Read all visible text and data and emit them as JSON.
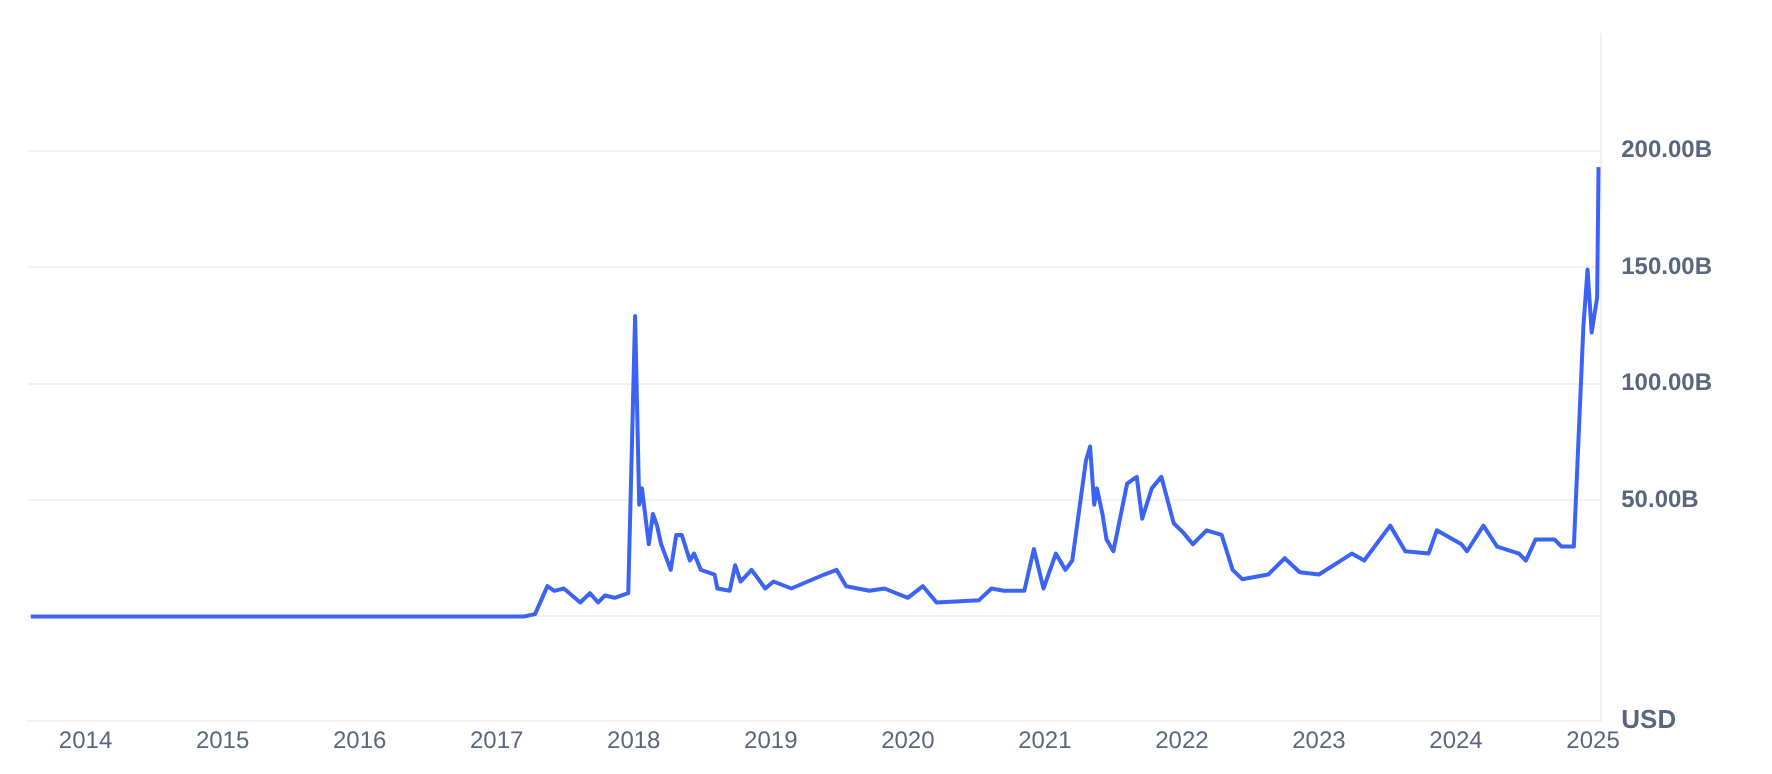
{
  "chart_data": {
    "type": "line",
    "ylabel": "USD",
    "xlim": [
      2013.58,
      2025.06
    ],
    "xticks": [
      2014,
      2015,
      2016,
      2017,
      2018,
      2019,
      2020,
      2021,
      2022,
      2023,
      2024,
      2025
    ],
    "ylim": [
      -45,
      250
    ],
    "yticks": [
      {
        "value": 0,
        "label": null
      },
      {
        "value": 50,
        "label": "50.00B"
      },
      {
        "value": 100,
        "label": "100.00B"
      },
      {
        "value": 150,
        "label": "150.00B"
      },
      {
        "value": 200,
        "label": "200.00B"
      }
    ],
    "grid": "y",
    "legend": false,
    "marker": "none",
    "line_style": "solid",
    "series": [
      {
        "color": "#3b63f5",
        "x": [
          2013.6,
          2015.0,
          2017.2,
          2017.28,
          2017.37,
          2017.42,
          2017.49,
          2017.61,
          2017.68,
          2017.74,
          2017.79,
          2017.86,
          2017.96,
          2018.01,
          2018.04,
          2018.06,
          2018.11,
          2018.14,
          2018.17,
          2018.2,
          2018.27,
          2018.31,
          2018.35,
          2018.41,
          2018.44,
          2018.49,
          2018.59,
          2018.61,
          2018.7,
          2018.74,
          2018.78,
          2018.86,
          2018.96,
          2019.02,
          2019.15,
          2019.39,
          2019.48,
          2019.55,
          2019.72,
          2019.83,
          2020.0,
          2020.11,
          2020.21,
          2020.52,
          2020.61,
          2020.7,
          2020.85,
          2020.92,
          2020.99,
          2021.08,
          2021.15,
          2021.2,
          2021.3,
          2021.33,
          2021.36,
          2021.38,
          2021.42,
          2021.45,
          2021.5,
          2021.6,
          2021.67,
          2021.71,
          2021.78,
          2021.85,
          2021.94,
          2022.01,
          2022.08,
          2022.18,
          2022.29,
          2022.37,
          2022.44,
          2022.63,
          2022.75,
          2022.86,
          2023.0,
          2023.24,
          2023.33,
          2023.52,
          2023.63,
          2023.8,
          2023.86,
          2024.04,
          2024.08,
          2024.2,
          2024.3,
          2024.46,
          2024.51,
          2024.58,
          2024.72,
          2024.77,
          2024.86,
          2024.93,
          2024.96,
          2024.99,
          2025.03,
          2025.04
        ],
        "values": [
          0,
          0,
          0,
          1,
          13,
          11,
          12,
          6,
          10,
          6,
          9,
          8,
          10,
          129,
          48,
          55,
          31,
          44,
          39,
          31,
          20,
          35,
          35,
          24,
          27,
          20,
          18,
          12,
          11,
          22,
          15,
          20,
          12,
          15,
          12,
          18,
          20,
          13,
          11,
          12,
          8,
          13,
          6,
          7,
          12,
          11,
          11,
          29,
          12,
          27,
          20,
          24,
          67,
          73,
          48,
          55,
          44,
          33,
          28,
          57,
          60,
          42,
          55,
          60,
          40,
          36,
          31,
          37,
          35,
          20,
          16,
          18,
          25,
          19,
          18,
          27,
          24,
          39,
          28,
          27,
          37,
          31,
          28,
          39,
          30,
          27,
          24,
          33,
          33,
          30,
          30,
          125,
          149,
          122,
          137,
          193
        ]
      }
    ]
  }
}
